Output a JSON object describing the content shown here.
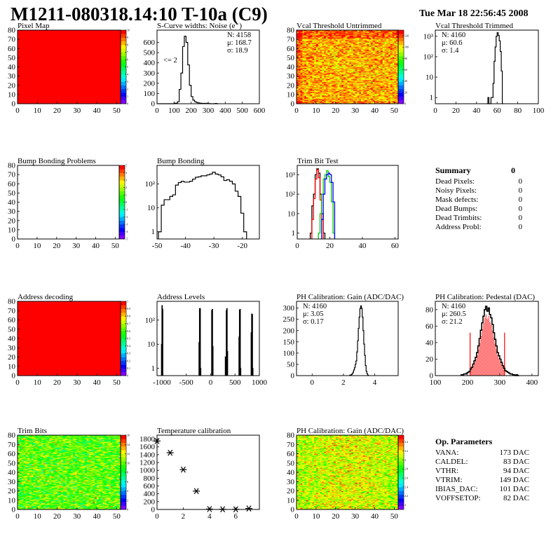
{
  "header": {
    "title": "M1211-080318.14:10 T-10a (C9)",
    "date": "Tue Mar 18 22:56:45 2008"
  },
  "colors": {
    "palette": "rainbow purple-blue-cyan-green-yellow-red",
    "fit": "#ff0000",
    "trim_series": [
      "#000000",
      "#ff0000",
      "#00ff00",
      "#0000ff"
    ]
  },
  "chart_data": [
    {
      "type": "heatmap",
      "title": "Pixel Map",
      "xlim": [
        0,
        52
      ],
      "ylim": [
        0,
        80
      ],
      "zlim": [
        0,
        10
      ],
      "content": "uniform",
      "uniform_value": 10,
      "xticks": [
        0,
        10,
        20,
        30,
        40,
        50
      ],
      "xtick_labels": [
        "0",
        "10",
        "20",
        "30",
        "40",
        "50"
      ],
      "yticks": [
        0,
        10,
        20,
        30,
        40,
        50,
        60,
        70,
        80
      ],
      "ytick_labels": [
        "0",
        "10",
        "20",
        "30",
        "40",
        "50",
        "60",
        "70",
        "80"
      ],
      "zticks": [
        0,
        1,
        2,
        3,
        4,
        5,
        6,
        7,
        8,
        9,
        10
      ],
      "ztick_labels": [
        "0",
        "1",
        "2",
        "3",
        "4",
        "5",
        "6",
        "7",
        "8",
        "9",
        "10"
      ]
    },
    {
      "type": "histogram",
      "title": "S-Curve widths: Noise (e⁻)",
      "xlim": [
        0,
        600
      ],
      "ylim": [
        0,
        720
      ],
      "log_y": false,
      "bins": {
        "start": 0,
        "width": 10,
        "values": [
          0,
          0,
          0,
          0,
          0,
          0,
          0,
          0,
          0,
          0,
          5,
          5,
          20,
          140,
          300,
          560,
          660,
          600,
          380,
          180,
          70,
          35,
          20,
          12,
          8,
          5,
          4,
          4,
          4,
          4,
          2,
          0,
          0,
          0,
          3,
          0
        ]
      },
      "stats": [
        "N: 4158",
        "μ: 168.7",
        "σ: 18.9"
      ],
      "annotation": "<= 2",
      "xticks": [
        0,
        100,
        200,
        300,
        400,
        500,
        600
      ],
      "xtick_labels": [
        "0",
        "100",
        "200",
        "300",
        "400",
        "500",
        "600"
      ],
      "yticks": [
        0,
        100,
        200,
        300,
        400,
        500,
        600
      ],
      "ytick_labels": [
        "0",
        "100",
        "200",
        "300",
        "400",
        "500",
        "600"
      ]
    },
    {
      "type": "heatmap",
      "title": "Vcal Threshold Untrimmed",
      "xlim": [
        0,
        52
      ],
      "ylim": [
        0,
        80
      ],
      "zlim": [
        0,
        130
      ],
      "content": "random",
      "xticks": [
        0,
        10,
        20,
        30,
        40,
        50
      ],
      "xtick_labels": [
        "0",
        "10",
        "20",
        "30",
        "40",
        "50"
      ],
      "yticks": [
        0,
        10,
        20,
        30,
        40,
        50,
        60,
        70,
        80
      ],
      "ytick_labels": [
        "0",
        "10",
        "20",
        "30",
        "40",
        "50",
        "60",
        "70",
        "80"
      ],
      "zticks": [
        0,
        20,
        40,
        60,
        80,
        100,
        120
      ],
      "ztick_labels": [
        "0",
        "20",
        "40",
        "60",
        "80",
        "100",
        "120"
      ]
    },
    {
      "type": "histogram",
      "title": "Vcal Threshold Trimmed",
      "xlim": [
        0,
        100
      ],
      "ylim": [
        0.5,
        2000
      ],
      "log_y": true,
      "bins": {
        "start": 50,
        "width": 1,
        "values": [
          0,
          1,
          0,
          0,
          1,
          1,
          5,
          60,
          300,
          1000,
          1500,
          1100,
          600,
          180,
          20,
          0
        ]
      },
      "stats": [
        "N: 4160",
        "μ: 60.6",
        "σ:  1.4"
      ],
      "xticks": [
        0,
        20,
        40,
        60,
        80,
        100
      ],
      "xtick_labels": [
        "0",
        "20",
        "40",
        "60",
        "80",
        "100"
      ],
      "yticks": [
        1,
        10,
        100,
        1000
      ],
      "ytick_labels": [
        "1",
        "10",
        "10²",
        "10³"
      ]
    },
    {
      "type": "heatmap",
      "title": "Bump Bonding Problems",
      "xlim": [
        0,
        52
      ],
      "ylim": [
        0,
        80
      ],
      "zlim": [
        -5,
        5
      ],
      "content": "empty",
      "xticks": [
        0,
        10,
        20,
        30,
        40,
        50
      ],
      "xtick_labels": [
        "0",
        "10",
        "20",
        "30",
        "40",
        "50"
      ],
      "yticks": [
        0,
        10,
        20,
        30,
        40,
        50,
        60,
        70,
        80
      ],
      "ytick_labels": [
        "0",
        "10",
        "20",
        "30",
        "40",
        "50",
        "60",
        "70",
        "80"
      ],
      "zticks": [
        -5,
        -4,
        -3,
        -2,
        -1,
        0,
        1,
        2,
        3,
        4,
        5
      ],
      "ztick_labels": [
        "-5",
        "-4",
        "-3",
        "-2",
        "-1",
        "0",
        "1",
        "2",
        "3",
        "4",
        "5"
      ]
    },
    {
      "type": "histogram",
      "title": "Bump Bonding",
      "xlim": [
        -50,
        -14
      ],
      "ylim": [
        0.5,
        600
      ],
      "log_y": true,
      "bins": {
        "start": -49.5,
        "width": 1,
        "values": [
          1,
          13,
          22,
          22,
          30,
          35,
          90,
          115,
          130,
          120,
          120,
          130,
          160,
          190,
          200,
          220,
          220,
          240,
          260,
          310,
          260,
          240,
          200,
          140,
          150,
          130,
          100,
          50,
          30,
          6,
          1
        ]
      },
      "xticks": [
        -50,
        -40,
        -30,
        -20
      ],
      "xtick_labels": [
        "-50",
        "-40",
        "-30",
        "-20"
      ],
      "yticks": [
        1,
        10,
        100
      ],
      "ytick_labels": [
        "1",
        "10",
        "10²"
      ]
    },
    {
      "type": "histogram",
      "title": "Trim Bit Test",
      "xlim": [
        0,
        62
      ],
      "ylim": [
        0.5,
        3000
      ],
      "log_y": true,
      "series": [
        {
          "color": "#000000",
          "start": 8,
          "width": 1,
          "values": [
            1,
            25,
            100,
            1000,
            2000,
            1200,
            100,
            10,
            1
          ]
        },
        {
          "color": "#ff0000",
          "start": 9,
          "width": 1,
          "values": [
            5,
            60,
            600,
            1800,
            700,
            50,
            5
          ]
        },
        {
          "color": "#00cc00",
          "start": 13,
          "width": 1,
          "values": [
            1,
            10,
            100,
            600,
            1000,
            1600,
            800,
            400,
            40,
            1
          ]
        },
        {
          "color": "#0000ff",
          "start": 15,
          "width": 1,
          "values": [
            5,
            100,
            600,
            1000,
            1200,
            1000,
            400,
            40
          ]
        }
      ],
      "xticks": [
        0,
        20,
        40,
        60
      ],
      "xtick_labels": [
        "0",
        "20",
        "40",
        "60"
      ],
      "yticks": [
        1,
        10,
        100,
        1000
      ],
      "ytick_labels": [
        "1",
        "10",
        "10²",
        "10³"
      ]
    },
    {
      "type": "heatmap",
      "title": "Address decoding",
      "xlim": [
        0,
        52
      ],
      "ylim": [
        0,
        80
      ],
      "zlim": [
        0,
        1
      ],
      "content": "uniform",
      "uniform_value": 1,
      "xticks": [
        0,
        10,
        20,
        30,
        40,
        50
      ],
      "xtick_labels": [
        "0",
        "10",
        "20",
        "30",
        "40",
        "50"
      ],
      "yticks": [
        0,
        10,
        20,
        30,
        40,
        50,
        60,
        70,
        80
      ],
      "ytick_labels": [
        "0",
        "10",
        "20",
        "30",
        "40",
        "50",
        "60",
        "70",
        "80"
      ],
      "zticks": [
        0,
        0.1,
        0.2,
        0.3,
        0.4,
        0.5,
        0.6,
        0.7,
        0.8,
        0.9,
        1
      ],
      "ztick_labels": [
        "0",
        "0.1",
        "0.2",
        "0.3",
        "0.4",
        "0.5",
        "0.6",
        "0.7",
        "0.8",
        "0.9",
        "1"
      ]
    },
    {
      "type": "histogram",
      "title": "Address Levels",
      "xlim": [
        -1100,
        1000
      ],
      "ylim": [
        0.5,
        600
      ],
      "log_y": true,
      "sparse_bins": {
        "width": 10,
        "bins": [
          [
            -1010,
            10
          ],
          [
            -1000,
            400
          ],
          [
            -990,
            280
          ],
          [
            -240,
            12
          ],
          [
            -230,
            300
          ],
          [
            -220,
            300
          ],
          [
            -210,
            1
          ],
          [
            20,
            250
          ],
          [
            30,
            280
          ],
          [
            40,
            8
          ],
          [
            300,
            3
          ],
          [
            310,
            1
          ],
          [
            320,
            250
          ],
          [
            330,
            300
          ],
          [
            340,
            5
          ],
          [
            580,
            20
          ],
          [
            590,
            260
          ],
          [
            600,
            280
          ],
          [
            610,
            1
          ],
          [
            830,
            30
          ],
          [
            840,
            180
          ],
          [
            850,
            170
          ],
          [
            860,
            1
          ]
        ]
      },
      "xticks": [
        -1000,
        -500,
        0,
        500,
        1000
      ],
      "xtick_labels": [
        "-1000",
        "-500",
        "0",
        "500",
        "1000"
      ],
      "yticks": [
        1,
        10,
        100
      ],
      "ytick_labels": [
        "1",
        "10",
        "10²"
      ]
    },
    {
      "type": "histogram",
      "title": "PH Calibration: Gain (ADC/DAC)",
      "xlim": [
        -1,
        5.5
      ],
      "ylim": [
        0,
        330
      ],
      "log_y": false,
      "bins": {
        "start": 2.4,
        "width": 0.05,
        "values": [
          2,
          3,
          5,
          8,
          15,
          25,
          35,
          50,
          65,
          105,
          155,
          210,
          260,
          298,
          310,
          298,
          260,
          200,
          140,
          90,
          45,
          20,
          8,
          2
        ]
      },
      "stats": [
        "N: 4160",
        "μ: 3.05",
        "σ: 0.17"
      ],
      "xticks": [
        0,
        2,
        4
      ],
      "xtick_labels": [
        "0",
        "2",
        "4"
      ],
      "yticks": [
        0,
        50,
        100,
        150,
        200,
        250,
        300
      ],
      "ytick_labels": [
        "0",
        "50",
        "100",
        "150",
        "200",
        "250",
        "300"
      ]
    },
    {
      "type": "histogram",
      "title": "PH Calibration: Pedestal (DAC)",
      "xlim": [
        100,
        420
      ],
      "ylim": [
        0,
        90
      ],
      "log_y": false,
      "bins": {
        "start": 180,
        "width": 4,
        "values": [
          1,
          1,
          2,
          2,
          3,
          4,
          5,
          8,
          10,
          14,
          18,
          22,
          28,
          36,
          45,
          55,
          64,
          72,
          80,
          84,
          78,
          82,
          74,
          70,
          62,
          52,
          44,
          36,
          28,
          24,
          20,
          16,
          12,
          9,
          6,
          5,
          4,
          3,
          2,
          2,
          1,
          1,
          0,
          1,
          0
        ]
      },
      "fit_range": [
        208,
        315
      ],
      "stats": [
        "N: 4160",
        "μ: 260.5",
        "σ: 21.2"
      ],
      "xticks": [
        100,
        200,
        300,
        400
      ],
      "xtick_labels": [
        "100",
        "200",
        "300",
        "400"
      ],
      "yticks": [
        0,
        20,
        40,
        60,
        80
      ],
      "ytick_labels": [
        "0",
        "20",
        "40",
        "60",
        "80"
      ]
    },
    {
      "type": "heatmap",
      "title": "Trim Bits",
      "xlim": [
        0,
        52
      ],
      "ylim": [
        0,
        80
      ],
      "zlim": [
        0,
        16
      ],
      "content": "random",
      "xticks": [
        0,
        10,
        20,
        30,
        40,
        50
      ],
      "xtick_labels": [
        "0",
        "10",
        "20",
        "30",
        "40",
        "50"
      ],
      "yticks": [
        0,
        10,
        20,
        30,
        40,
        50,
        60,
        70,
        80
      ],
      "ytick_labels": [
        "0",
        "10",
        "20",
        "30",
        "40",
        "50",
        "60",
        "70",
        "80"
      ],
      "zticks": [
        0,
        2,
        4,
        6,
        8,
        10,
        12,
        14,
        16
      ],
      "ztick_labels": [
        "0",
        "2",
        "4",
        "6",
        "8",
        "10",
        "12",
        "14",
        "16"
      ]
    },
    {
      "type": "scatter",
      "title": "Temperature calibration",
      "xlim": [
        0,
        7.8
      ],
      "ylim": [
        0,
        1900
      ],
      "points": [
        [
          0,
          1750
        ],
        [
          1,
          1450
        ],
        [
          2,
          1020
        ],
        [
          3,
          470
        ],
        [
          4,
          10
        ],
        [
          5,
          5
        ],
        [
          6,
          5
        ],
        [
          7,
          25
        ]
      ],
      "xticks": [
        0,
        2,
        4,
        6
      ],
      "xtick_labels": [
        "0",
        "2",
        "4",
        "6"
      ],
      "yticks": [
        0,
        200,
        400,
        600,
        800,
        1000,
        1200,
        1400,
        1600,
        1800
      ],
      "ytick_labels": [
        "0",
        "200",
        "400",
        "600",
        "800",
        "1000",
        "1200",
        "1400",
        "1600",
        "1800"
      ]
    },
    {
      "type": "heatmap",
      "title": "PH Calibration: Gain (ADC/DAC)",
      "xlim": [
        0,
        52
      ],
      "ylim": [
        0,
        80
      ],
      "zlim": [
        1.9,
        3.55
      ],
      "content": "random",
      "xticks": [
        0,
        10,
        20,
        30,
        40,
        50
      ],
      "xtick_labels": [
        "0",
        "10",
        "20",
        "30",
        "40",
        "50"
      ],
      "yticks": [
        0,
        10,
        20,
        30,
        40,
        50,
        60,
        70,
        80
      ],
      "ytick_labels": [
        "0",
        "10",
        "20",
        "30",
        "40",
        "50",
        "60",
        "70",
        "80"
      ],
      "zticks": [
        2,
        2.2,
        2.4,
        2.6,
        2.8,
        3,
        3.2,
        3.4
      ],
      "ztick_labels": [
        "2",
        "2.2",
        "2.4",
        "2.6",
        "2.8",
        "3",
        "3.2",
        "3.4"
      ]
    }
  ],
  "summary": {
    "title": "Summary",
    "total": "0",
    "rows": [
      {
        "label": "Dead Pixels:",
        "value": "0"
      },
      {
        "label": "Noisy Pixels:",
        "value": "0"
      },
      {
        "label": "Mask defects:",
        "value": "0"
      },
      {
        "label": "Dead Bumps:",
        "value": "0"
      },
      {
        "label": "Dead Trimbits:",
        "value": "0"
      },
      {
        "label": "Address Probl:",
        "value": "0"
      }
    ]
  },
  "op_parameters": {
    "title": "Op. Parameters",
    "rows": [
      {
        "label": "VANA:",
        "value": "173 DAC"
      },
      {
        "label": "CALDEL:",
        "value": "83 DAC"
      },
      {
        "label": "VTHR:",
        "value": "94 DAC"
      },
      {
        "label": "VTRIM:",
        "value": "149 DAC"
      },
      {
        "label": "IBIAS_DAC:",
        "value": "101 DAC"
      },
      {
        "label": "VOFFSETOP:",
        "value": "82 DAC"
      }
    ]
  }
}
